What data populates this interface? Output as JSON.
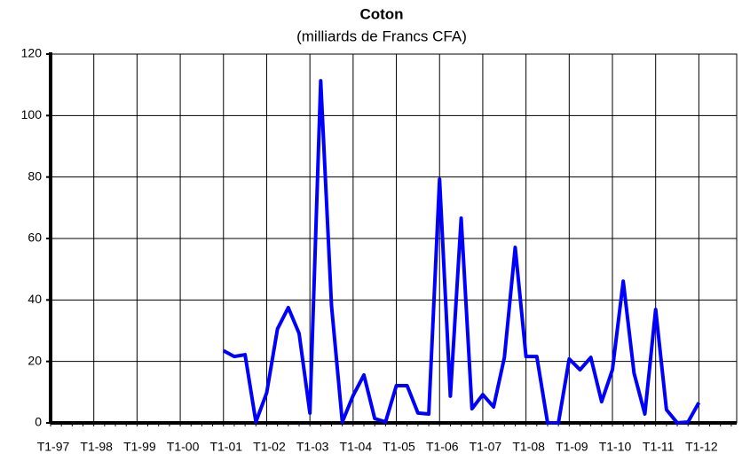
{
  "chart_data": {
    "type": "line",
    "title": "Coton",
    "subtitle": "(milliards de Francs CFA)",
    "categories": [
      "T1-97",
      null,
      null,
      null,
      "T1-98",
      null,
      null,
      null,
      "T1-99",
      null,
      null,
      null,
      "T1-00",
      null,
      null,
      null,
      "T1-01",
      null,
      null,
      null,
      "T1-02",
      null,
      null,
      null,
      "T1-03",
      null,
      null,
      null,
      "T1-04",
      null,
      null,
      null,
      "T1-05",
      null,
      null,
      null,
      "T1-06",
      null,
      null,
      null,
      "T1-07",
      null,
      null,
      null,
      "T1-08",
      null,
      null,
      null,
      "T1-09",
      null,
      null,
      null,
      "T1-10",
      null,
      null,
      null,
      "T1-11",
      null,
      null,
      null,
      "T1-12",
      null,
      null,
      null
    ],
    "series": [
      {
        "name": "Coton",
        "color": "#0000ff",
        "values": [
          null,
          null,
          null,
          null,
          null,
          null,
          null,
          null,
          null,
          null,
          null,
          null,
          null,
          null,
          null,
          null,
          23.5,
          21.6,
          22.2,
          0.3,
          9.8,
          30.6,
          37.5,
          29.1,
          3.2,
          111.3,
          38.1,
          0.3,
          8.9,
          15.6,
          1.4,
          0.3,
          12.1,
          12.1,
          3.2,
          2.9,
          79.3,
          8.7,
          66.6,
          4.6,
          9.2,
          5.2,
          21.3,
          57.1,
          21.6,
          21.6,
          0,
          0,
          20.8,
          17.3,
          21.3,
          6.9,
          17.3,
          46.1,
          16.2,
          2.9,
          36.9,
          4.3,
          0,
          0.3,
          6.6,
          null,
          null,
          null
        ]
      }
    ],
    "ylim": [
      0,
      120
    ],
    "yticks": [
      0,
      20,
      40,
      60,
      80,
      100,
      120
    ],
    "grid": true
  }
}
